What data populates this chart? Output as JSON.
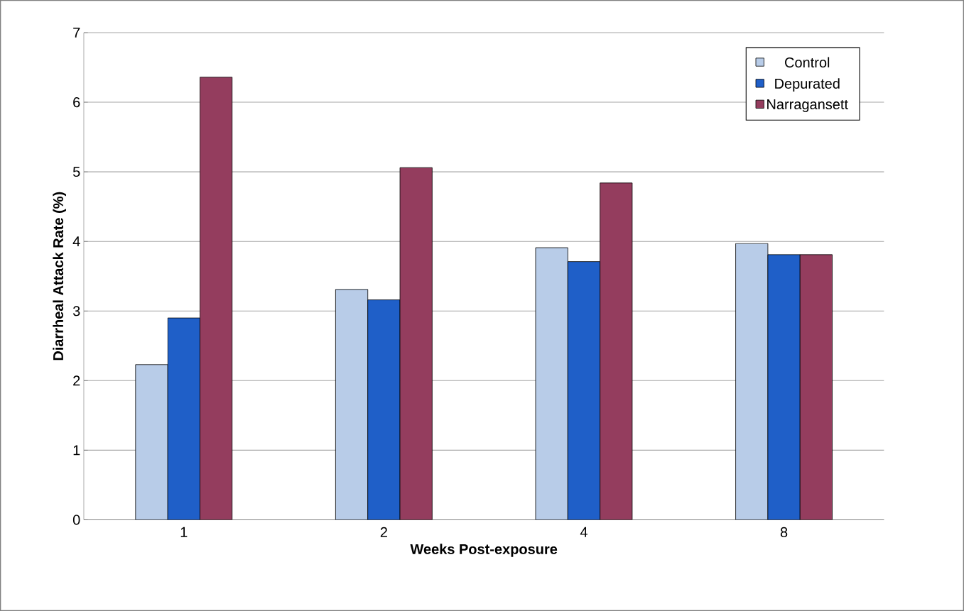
{
  "chart_data": {
    "type": "bar",
    "xlabel": "Weeks Post-exposure",
    "ylabel": "Diarrheal Attack Rate (%)",
    "categories": [
      "1",
      "2",
      "4",
      "8"
    ],
    "series": [
      {
        "name": "Control",
        "color": "#b8cce8",
        "values": [
          2.23,
          3.31,
          3.91,
          3.97
        ]
      },
      {
        "name": "Depurated",
        "color": "#1f5fc8",
        "values": [
          2.9,
          3.16,
          3.71,
          3.81
        ]
      },
      {
        "name": "Narragansett",
        "color": "#943d5e",
        "values": [
          6.36,
          5.06,
          4.84,
          3.81
        ]
      }
    ],
    "ylim": [
      0,
      7
    ],
    "yticks": [
      0,
      1,
      2,
      3,
      4,
      5,
      6,
      7
    ],
    "grid": "y",
    "legend": "top right"
  }
}
